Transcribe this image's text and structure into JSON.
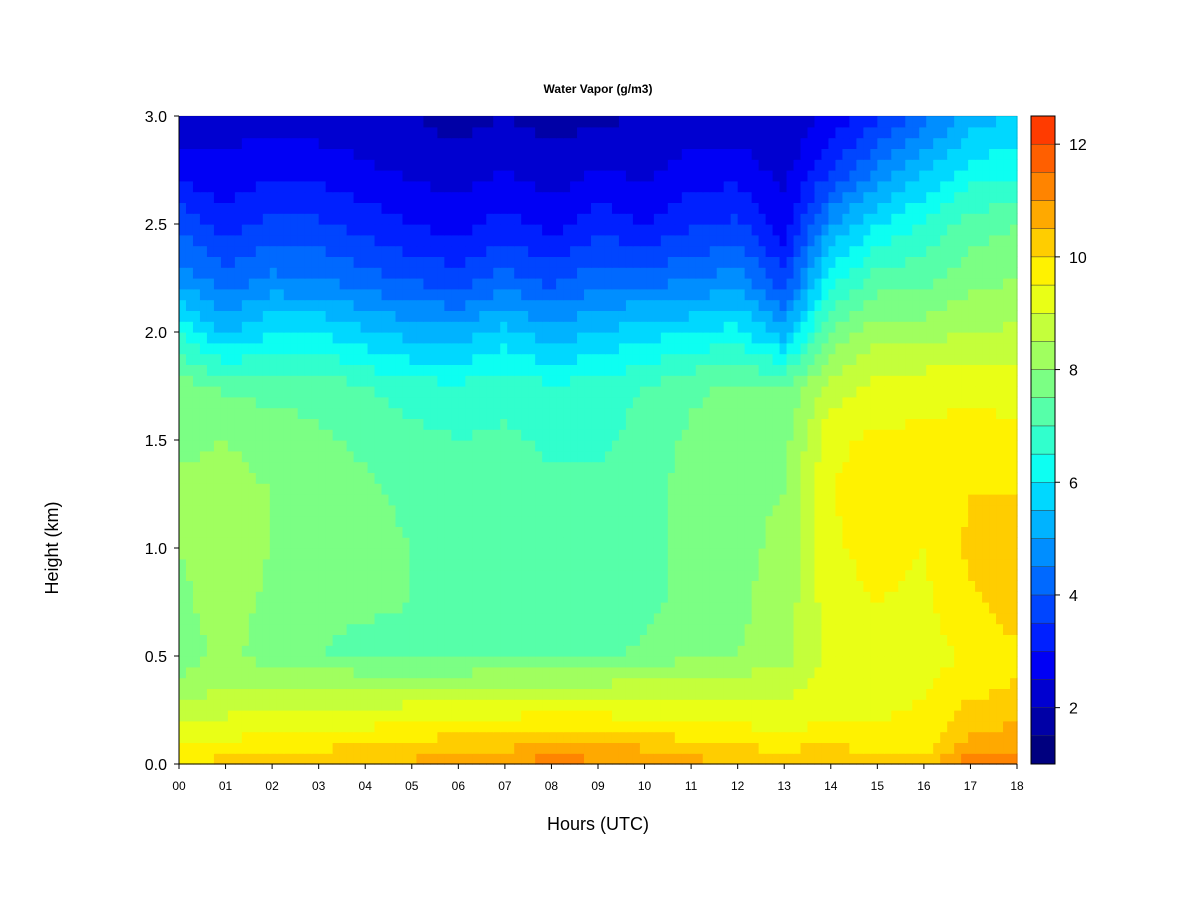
{
  "chart_data": {
    "type": "heatmap",
    "title": "Water Vapor (g/m3)",
    "xlabel": "Hours (UTC)",
    "ylabel": "Height (km)",
    "x_ticks": [
      "00",
      "01",
      "02",
      "03",
      "04",
      "05",
      "06",
      "07",
      "08",
      "09",
      "10",
      "11",
      "12",
      "13",
      "14",
      "15",
      "16",
      "17",
      "18"
    ],
    "xlim": [
      0,
      18
    ],
    "y_ticks": [
      "0.0",
      "0.5",
      "1.0",
      "1.5",
      "2.0",
      "2.5",
      "3.0"
    ],
    "ylim": [
      0,
      3
    ],
    "colorbar": {
      "ticks": [
        "2",
        "4",
        "6",
        "8",
        "10",
        "12"
      ],
      "range": [
        1,
        12.5
      ],
      "level_step": 0.5,
      "colors": [
        "#00007f",
        "#0000a6",
        "#0000d0",
        "#0000f5",
        "#0020ff",
        "#0045ff",
        "#0069ff",
        "#008eff",
        "#00b3ff",
        "#00d8ff",
        "#0dfff2",
        "#31ffcd",
        "#56ffa9",
        "#7bff84",
        "#a0ff5f",
        "#c4ff3b",
        "#e9ff16",
        "#fff200",
        "#ffcd00",
        "#ffa900",
        "#ff8400",
        "#ff5f00",
        "#ff3b00",
        "#ff1600",
        "#e50000"
      ]
    },
    "columns_hours": [
      0,
      1,
      2,
      3,
      4,
      5,
      6,
      7,
      8,
      9,
      10,
      11,
      12,
      13,
      14,
      15,
      16,
      17,
      18
    ],
    "heights_km": [
      0.0,
      0.1,
      0.2,
      0.3,
      0.4,
      0.5,
      0.75,
      1.0,
      1.25,
      1.5,
      1.75,
      2.0,
      2.25,
      2.5,
      2.75,
      3.0
    ],
    "values_g_m3": [
      [
        10.0,
        10.2,
        10.3,
        10.3,
        10.6,
        10.6,
        10.9,
        10.9,
        11.3,
        11.1,
        11.0,
        10.7,
        10.5,
        10.4,
        10.6,
        10.3,
        10.2,
        11.3,
        11.2
      ],
      [
        9.5,
        9.6,
        9.7,
        9.8,
        10.0,
        10.1,
        10.2,
        10.3,
        10.6,
        10.5,
        10.3,
        10.1,
        9.9,
        9.8,
        9.9,
        9.7,
        9.7,
        10.7,
        10.7
      ],
      [
        9.0,
        9.1,
        9.1,
        9.2,
        9.3,
        9.4,
        9.6,
        9.6,
        9.8,
        9.7,
        9.6,
        9.5,
        9.4,
        9.3,
        9.5,
        9.5,
        9.6,
        10.3,
        10.5
      ],
      [
        8.5,
        8.7,
        8.8,
        8.8,
        8.8,
        8.9,
        9.0,
        9.0,
        9.1,
        9.0,
        9.0,
        9.0,
        9.0,
        9.0,
        9.3,
        9.4,
        9.5,
        10.0,
        10.2
      ],
      [
        8.0,
        8.3,
        8.3,
        8.3,
        8.2,
        8.2,
        8.2,
        8.3,
        8.3,
        8.3,
        8.4,
        8.5,
        8.6,
        8.7,
        9.2,
        9.3,
        9.4,
        9.7,
        10.0
      ],
      [
        7.8,
        8.1,
        7.8,
        7.5,
        7.3,
        7.3,
        7.3,
        7.4,
        7.4,
        7.4,
        7.6,
        8.0,
        8.0,
        8.3,
        9.1,
        9.3,
        9.3,
        9.6,
        9.9
      ],
      [
        7.9,
        8.2,
        7.9,
        7.7,
        7.6,
        7.5,
        7.4,
        7.4,
        7.2,
        7.3,
        7.3,
        7.7,
        7.9,
        8.2,
        9.3,
        9.5,
        9.4,
        9.9,
        10.3
      ],
      [
        8.0,
        8.2,
        8.0,
        7.8,
        7.6,
        7.5,
        7.3,
        7.3,
        7.1,
        7.2,
        7.3,
        7.7,
        7.9,
        8.1,
        9.4,
        9.7,
        9.5,
        10.1,
        10.3
      ],
      [
        8.1,
        8.2,
        8.0,
        7.8,
        7.6,
        7.4,
        7.2,
        7.3,
        7.1,
        7.1,
        7.3,
        7.7,
        7.9,
        8.0,
        9.5,
        9.7,
        9.6,
        10.0,
        10.0
      ],
      [
        7.9,
        8.0,
        7.8,
        7.6,
        7.4,
        7.2,
        7.0,
        7.1,
        6.9,
        6.9,
        7.2,
        7.6,
        7.8,
        7.8,
        9.4,
        9.6,
        9.6,
        9.8,
        9.7
      ],
      [
        7.8,
        7.4,
        7.3,
        7.3,
        7.0,
        6.7,
        6.6,
        6.8,
        6.6,
        6.7,
        7.0,
        7.4,
        7.6,
        7.5,
        8.7,
        9.2,
        9.3,
        9.3,
        9.2
      ],
      [
        6.5,
        5.4,
        6.0,
        6.0,
        5.6,
        5.3,
        5.2,
        5.7,
        5.2,
        5.5,
        5.8,
        6.0,
        6.2,
        5.2,
        7.6,
        8.3,
        8.3,
        8.5,
        8.6
      ],
      [
        4.8,
        4.2,
        4.6,
        4.5,
        4.2,
        3.9,
        3.7,
        4.2,
        3.8,
        4.3,
        4.3,
        4.4,
        4.8,
        3.6,
        6.3,
        7.2,
        7.3,
        7.8,
        8.0
      ],
      [
        3.9,
        3.2,
        3.7,
        3.6,
        3.3,
        3.0,
        2.8,
        3.2,
        2.8,
        3.3,
        3.0,
        3.4,
        3.6,
        2.7,
        4.9,
        6.0,
        6.6,
        7.2,
        7.5
      ],
      [
        2.8,
        2.6,
        2.9,
        2.8,
        2.6,
        2.4,
        2.2,
        2.5,
        2.2,
        2.5,
        2.4,
        2.7,
        2.8,
        2.3,
        3.5,
        4.6,
        5.4,
        6.2,
        6.4
      ],
      [
        2.2,
        2.3,
        2.3,
        2.2,
        2.1,
        2.0,
        1.8,
        2.0,
        1.8,
        1.9,
        2.0,
        2.2,
        2.2,
        2.0,
        2.6,
        3.3,
        4.3,
        5.2,
        5.6
      ]
    ]
  }
}
